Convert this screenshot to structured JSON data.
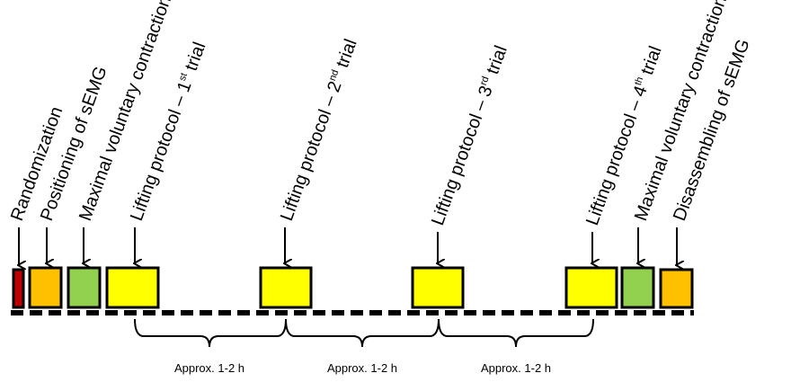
{
  "steps": [
    {
      "id": "randomization",
      "label": "Randomization",
      "color": "#c00000"
    },
    {
      "id": "sEMG-positioning",
      "label": "Positioning of sEMG",
      "color": "#ffc000"
    },
    {
      "id": "mvc-1",
      "label": "Maximal voluntary contractions",
      "color": "#92d050"
    },
    {
      "id": "lift-1",
      "label": "Lifting protocol – 1",
      "sup": "st",
      "suffix": " trial",
      "color": "#ffff00"
    },
    {
      "id": "lift-2",
      "label": "Lifting protocol – 2",
      "sup": "nd",
      "suffix": "  trial",
      "color": "#ffff00"
    },
    {
      "id": "lift-3",
      "label": "Lifting protocol – 3",
      "sup": "rd",
      "suffix": " trial",
      "color": "#ffff00"
    },
    {
      "id": "lift-4",
      "label": "Lifting protocol – 4",
      "sup": "th",
      "suffix": "  trial",
      "color": "#ffff00"
    },
    {
      "id": "mvc-2",
      "label": "Maximal voluntary contractions",
      "color": "#92d050"
    },
    {
      "id": "sEMG-disassembly",
      "label": "Disassembling of sEMG",
      "color": "#ffc000"
    }
  ],
  "intervals": [
    {
      "label": "Approx. 1-2 h"
    },
    {
      "label": "Approx. 1-2 h"
    },
    {
      "label": "Approx. 1-2 h"
    }
  ]
}
